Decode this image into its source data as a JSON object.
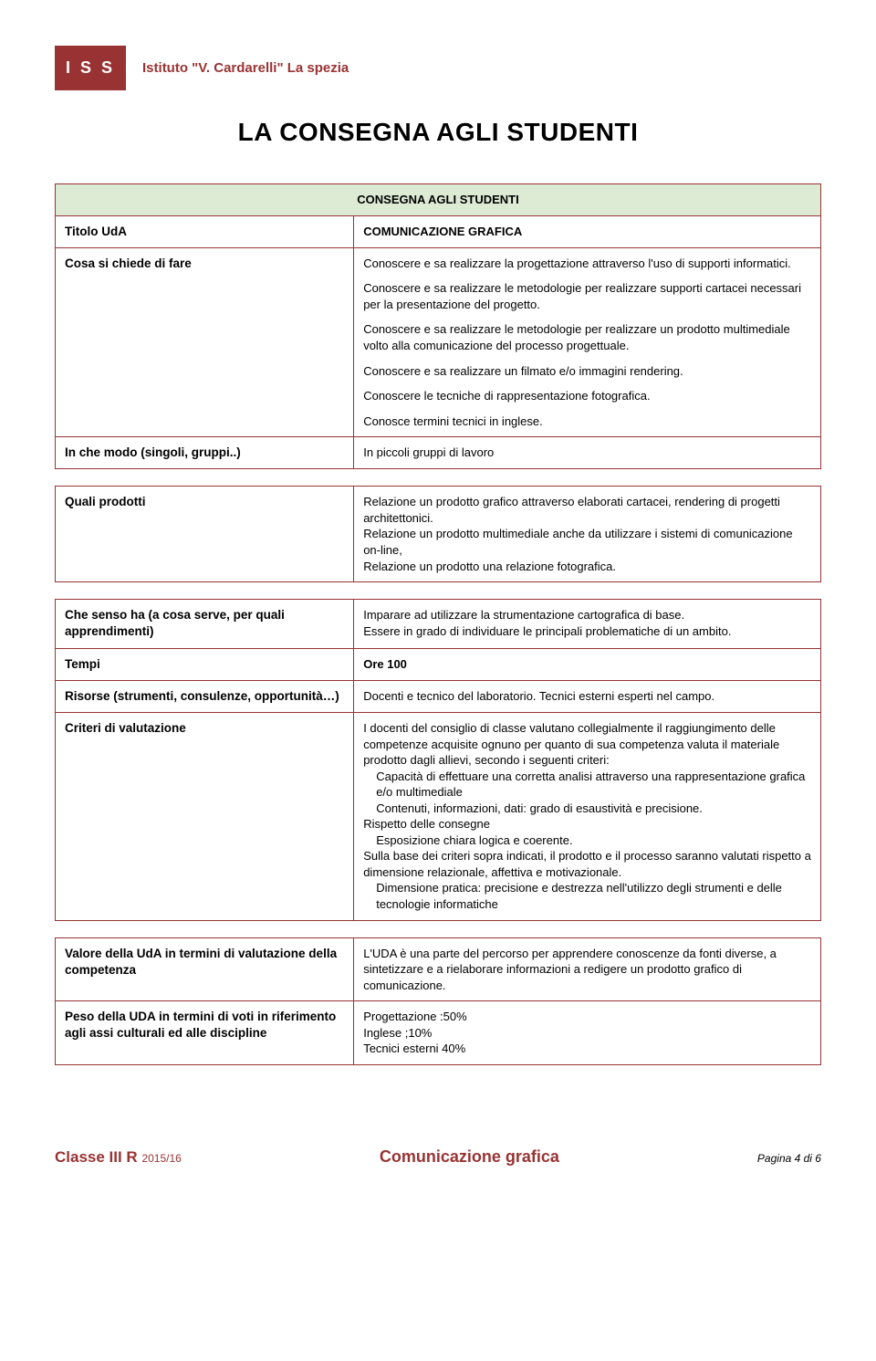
{
  "header": {
    "logo_text": "I S S",
    "institute": "Istituto \"V. Cardarelli\" La spezia"
  },
  "page_title": "LA CONSEGNA AGLI STUDENTI",
  "section_header": "CONSEGNA AGLI STUDENTI",
  "rows": {
    "titolo_uda": {
      "label": "Titolo UdA",
      "value": "COMUNICAZIONE GRAFICA"
    },
    "cosa_si_chiede": {
      "label": "Cosa si chiede di fare",
      "p1": "Conoscere e sa realizzare la progettazione attraverso l'uso di supporti informatici.",
      "p2": "Conoscere e sa realizzare le metodologie per realizzare supporti cartacei necessari per la presentazione del progetto.",
      "p3": "Conoscere e sa realizzare le metodologie per  realizzare un prodotto multimediale volto alla comunicazione del processo progettuale.",
      "p4": "Conoscere e sa realizzare un filmato e/o immagini rendering.",
      "p5": "Conoscere le tecniche di rappresentazione fotografica.",
      "p6": "Conosce termini tecnici in inglese."
    },
    "in_che_modo": {
      "label": "In che modo (singoli, gruppi..)",
      "value": "In piccoli gruppi di lavoro"
    },
    "quali_prodotti": {
      "label": "Quali prodotti",
      "p1": "Relazione un prodotto grafico attraverso elaborati cartacei, rendering di progetti architettonici.",
      "p2": "Relazione un prodotto multimediale  anche da utilizzare i sistemi di comunicazione on-line,",
      "p3": "Relazione un prodotto una relazione fotografica."
    },
    "che_senso": {
      "label": "Che senso ha (a cosa serve, per quali apprendimenti)",
      "p1": "Imparare ad utilizzare la strumentazione cartografica di base.",
      "p2": "Essere in grado di individuare le principali problematiche di un ambito."
    },
    "tempi": {
      "label": "Tempi",
      "value": "Ore 100"
    },
    "risorse": {
      "label": "Risorse (strumenti, consulenze, opportunità…)",
      "value": "Docenti e tecnico del laboratorio. Tecnici esterni esperti nel campo."
    },
    "criteri": {
      "label": "Criteri di valutazione",
      "p1": "I docenti del consiglio di classe valutano collegialmente il raggiungimento delle competenze acquisite ognuno per quanto di sua competenza valuta il materiale prodotto dagli allievi, secondo i seguenti criteri:",
      "b1": "Capacità di effettuare una corretta analisi attraverso una rappresentazione grafica e/o multimediale",
      "b2": "Contenuti, informazioni, dati: grado di esaustività e precisione.",
      "p2": "Rispetto delle consegne",
      "b3": "Esposizione chiara logica e coerente.",
      "p3": "Sulla base dei criteri sopra indicati, il prodotto e il processo saranno valutati rispetto a dimensione relazionale, affettiva e motivazionale.",
      "b4": "Dimensione pratica: precisione e destrezza nell'utilizzo degli strumenti e delle tecnologie informatiche"
    },
    "valore": {
      "label": "Valore della UdA in termini di valutazione della competenza",
      "value": "L'UDA è una parte del percorso per apprendere conoscenze da fonti diverse, a sintetizzare e a rielaborare informazioni a redigere un prodotto grafico di comunicazione."
    },
    "peso": {
      "label": "Peso della UDA in termini di voti in riferimento agli assi culturali ed alle discipline",
      "p1": "Progettazione :50%",
      "p2": "Inglese ;10%",
      "p3": "Tecnici esterni 40%"
    }
  },
  "footer": {
    "class": "Classe III R",
    "year": "2015/16",
    "center": "Comunicazione grafica",
    "page": "Pagina 4 di 6"
  },
  "colors": {
    "brand": "#993333",
    "section_bg": "#ddebd5",
    "border": "#993333"
  }
}
